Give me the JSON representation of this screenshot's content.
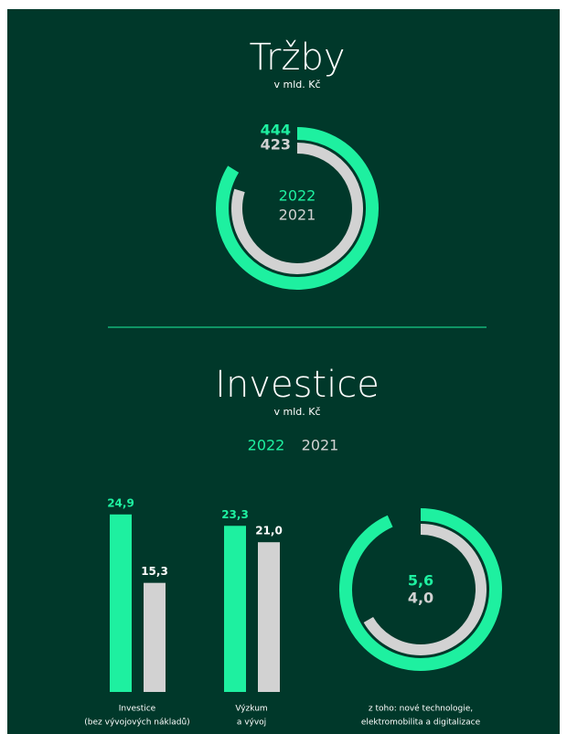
{
  "chart_data": [
    {
      "type": "ring",
      "title": "Tržby",
      "subtitle": "v mld. Kč",
      "legend": "center",
      "values_position": "top",
      "rlim": [
        0,
        530
      ],
      "series": [
        {
          "name": "2022",
          "color": "#1ef0a0",
          "values": [
            444
          ]
        },
        {
          "name": "2021",
          "color": "#d2d2d2",
          "values": [
            423
          ]
        }
      ]
    },
    {
      "type": "bar",
      "title": "Investice",
      "subtitle": "v mld. Kč",
      "legend": "top",
      "categories": [
        [
          "Investice",
          "(bez vývojových nákladů)"
        ],
        [
          "Výzkum",
          "a vývoj"
        ]
      ],
      "ylim": [
        0,
        25
      ],
      "series": [
        {
          "name": "2022",
          "color": "#1ef0a0",
          "values": [
            24.9,
            23.3
          ],
          "value_labels": [
            "24,9",
            "23,3"
          ]
        },
        {
          "name": "2021",
          "color": "#d2d2d2",
          "values": [
            15.3,
            21.0
          ],
          "value_labels": [
            "15,3",
            "21,0"
          ]
        }
      ]
    },
    {
      "type": "ring",
      "values_position": "center",
      "label": [
        "z toho: nové technologie,",
        "elektromobilita a digitalizace"
      ],
      "rlim": [
        0,
        6
      ],
      "series": [
        {
          "name": "2022",
          "color": "#1ef0a0",
          "values": [
            5.6
          ],
          "value_labels": [
            "5,6"
          ]
        },
        {
          "name": "2021",
          "color": "#d2d2d2",
          "values": [
            4.0
          ],
          "value_labels": [
            "4,0"
          ]
        }
      ]
    }
  ]
}
